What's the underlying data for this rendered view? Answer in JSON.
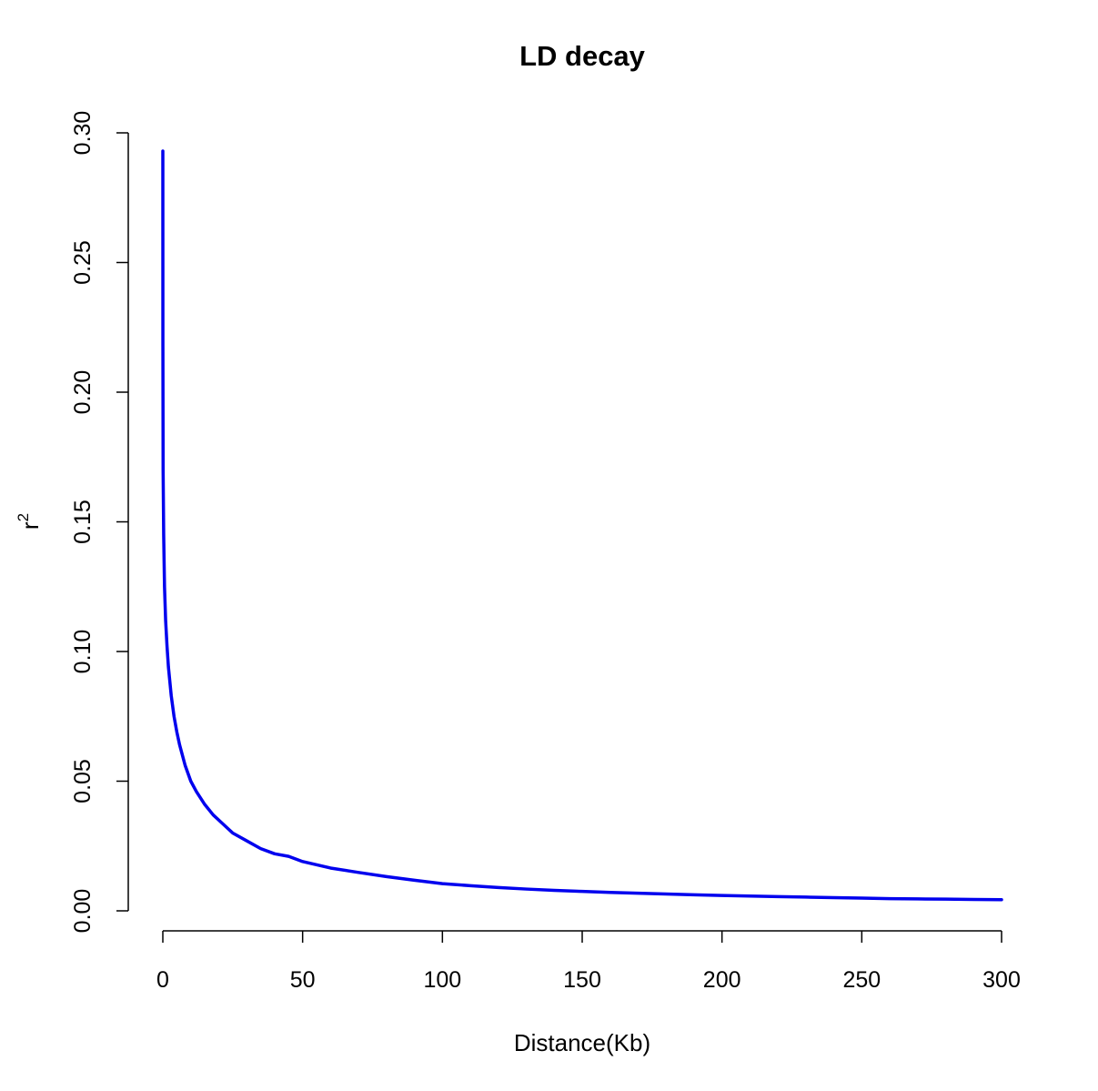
{
  "chart_data": {
    "type": "line",
    "title": "LD decay",
    "xlabel": "Distance(Kb)",
    "ylabel": "r",
    "ylabel_superscript": "2",
    "xlim": [
      0,
      300
    ],
    "ylim": [
      0,
      0.3
    ],
    "x_ticks": [
      0,
      50,
      100,
      150,
      200,
      250,
      300
    ],
    "y_ticks": [
      0.0,
      0.05,
      0.1,
      0.15,
      0.2,
      0.25,
      0.3
    ],
    "x_tick_labels": [
      "0",
      "50",
      "100",
      "150",
      "200",
      "250",
      "300"
    ],
    "y_tick_labels": [
      "0.00",
      "0.05",
      "0.10",
      "0.15",
      "0.20",
      "0.25",
      "0.30"
    ],
    "grid": false,
    "legend": "none",
    "series": [
      {
        "color": "#0000ee",
        "x": [
          0,
          0.02,
          0.1,
          0.3,
          0.6,
          1,
          1.5,
          2,
          3,
          4,
          5,
          6,
          8,
          10,
          12,
          15,
          18,
          20,
          25,
          30,
          35,
          40,
          45,
          50,
          60,
          70,
          80,
          90,
          100,
          110,
          120,
          130,
          140,
          150,
          160,
          170,
          180,
          190,
          200,
          210,
          220,
          230,
          240,
          250,
          260,
          270,
          280,
          290,
          300
        ],
        "y": [
          0.293,
          0.22,
          0.17,
          0.145,
          0.125,
          0.112,
          0.102,
          0.094,
          0.083,
          0.075,
          0.069,
          0.064,
          0.056,
          0.05,
          0.046,
          0.041,
          0.037,
          0.035,
          0.03,
          0.027,
          0.024,
          0.022,
          0.021,
          0.019,
          0.0165,
          0.0148,
          0.0132,
          0.0118,
          0.0105,
          0.0097,
          0.009,
          0.0084,
          0.0079,
          0.0075,
          0.0071,
          0.0068,
          0.0065,
          0.0062,
          0.0059,
          0.0057,
          0.0055,
          0.0053,
          0.0051,
          0.0049,
          0.0047,
          0.0046,
          0.0045,
          0.0044,
          0.0043
        ]
      }
    ]
  }
}
